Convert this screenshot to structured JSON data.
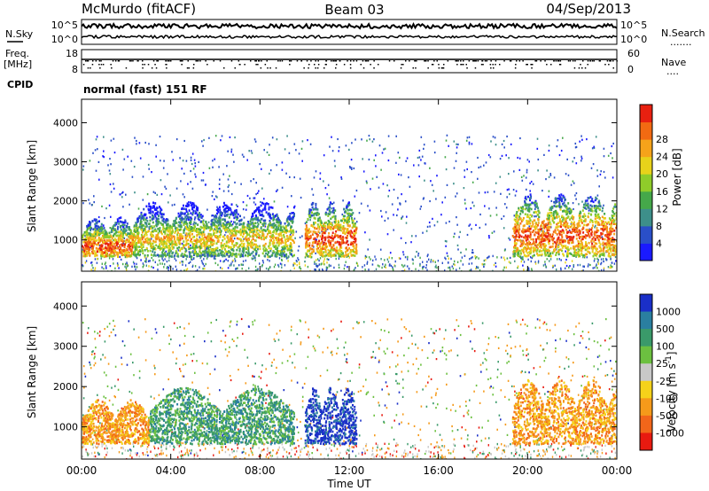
{
  "header": {
    "station": "McMurdo (fitACF)",
    "beam": "Beam 03",
    "date": "04/Sep/2013"
  },
  "noise_panel": {
    "left_label": "N.Sky",
    "left_ticks": [
      "10^5",
      "10^0"
    ],
    "right_label": "N.Search",
    "right_ticks": [
      "10^5",
      "10^0"
    ],
    "right_legend": "......."
  },
  "freq_panel": {
    "left_label_1": "Freq.",
    "left_label_2": "[MHz]",
    "left_ticks": [
      "18",
      "8"
    ],
    "right_label": "Nave",
    "right_ticks": [
      "60",
      "0"
    ],
    "right_legend": "....",
    "cpid_label": "CPID",
    "cpid_value": "normal (fast) 151 RF"
  },
  "chart_data": [
    {
      "type": "heatmap",
      "name": "power",
      "x_ticks": [
        "00:00",
        "04:00",
        "08:00",
        "12:00",
        "16:00",
        "20:00",
        "00:00"
      ],
      "xlim_hours": [
        0,
        24
      ],
      "ylabel": "Slant Range [km]",
      "y_ticks": [
        1000,
        2000,
        3000,
        4000
      ],
      "ylim": [
        200,
        4600
      ],
      "colorbar_label": "Power [dB]",
      "colorbar_ticks": [
        "4",
        "8",
        "12",
        "16",
        "20",
        "24",
        "28"
      ],
      "colorbar_colors": [
        "#1a1aff",
        "#2a4fc8",
        "#3d8f8a",
        "#45a84a",
        "#8fcc2a",
        "#e8d21a",
        "#f5a31a",
        "#f26a12",
        "#e82010"
      ],
      "echo_regions": [
        {
          "t_start": 0.0,
          "t_end": 2.3,
          "r_low": 600,
          "r_high": 1600,
          "peak_db": 28
        },
        {
          "t_start": 2.3,
          "t_end": 9.5,
          "r_low": 600,
          "r_high": 2000,
          "peak_db": 22
        },
        {
          "t_start": 10.0,
          "t_end": 12.3,
          "r_low": 600,
          "r_high": 2000,
          "peak_db": 28
        },
        {
          "t_start": 19.3,
          "t_end": 24.0,
          "r_low": 600,
          "r_high": 2200,
          "peak_db": 28
        }
      ]
    },
    {
      "type": "heatmap",
      "name": "velocity",
      "x_ticks": [
        "00:00",
        "04:00",
        "08:00",
        "12:00",
        "16:00",
        "20:00",
        "00:00"
      ],
      "xlim_hours": [
        0,
        24
      ],
      "xlabel": "Time UT",
      "ylabel": "Slant Range [km]",
      "y_ticks": [
        1000,
        2000,
        3000,
        4000
      ],
      "ylim": [
        200,
        4600
      ],
      "colorbar_label": "Velocity [m s^-1]",
      "colorbar_ticks": [
        "1000",
        "500",
        "100",
        "25",
        "-25",
        "-100",
        "-500",
        "-1000"
      ],
      "colorbar_colors": [
        "#1a2fc8",
        "#2a7fa0",
        "#3a9a6a",
        "#6cc040",
        "#c8c8c8",
        "#f5d21a",
        "#f59a1a",
        "#f2661a",
        "#e81a10"
      ],
      "echo_regions": [
        {
          "t_start": 0.0,
          "t_end": 3.0,
          "r_low": 600,
          "r_high": 1700,
          "velocity": -300
        },
        {
          "t_start": 3.0,
          "t_end": 9.5,
          "r_low": 600,
          "r_high": 2000,
          "velocity": 200
        },
        {
          "t_start": 10.0,
          "t_end": 12.3,
          "r_low": 600,
          "r_high": 2000,
          "velocity": 900
        },
        {
          "t_start": 19.3,
          "t_end": 24.0,
          "r_low": 600,
          "r_high": 2200,
          "velocity": -250
        }
      ]
    }
  ]
}
